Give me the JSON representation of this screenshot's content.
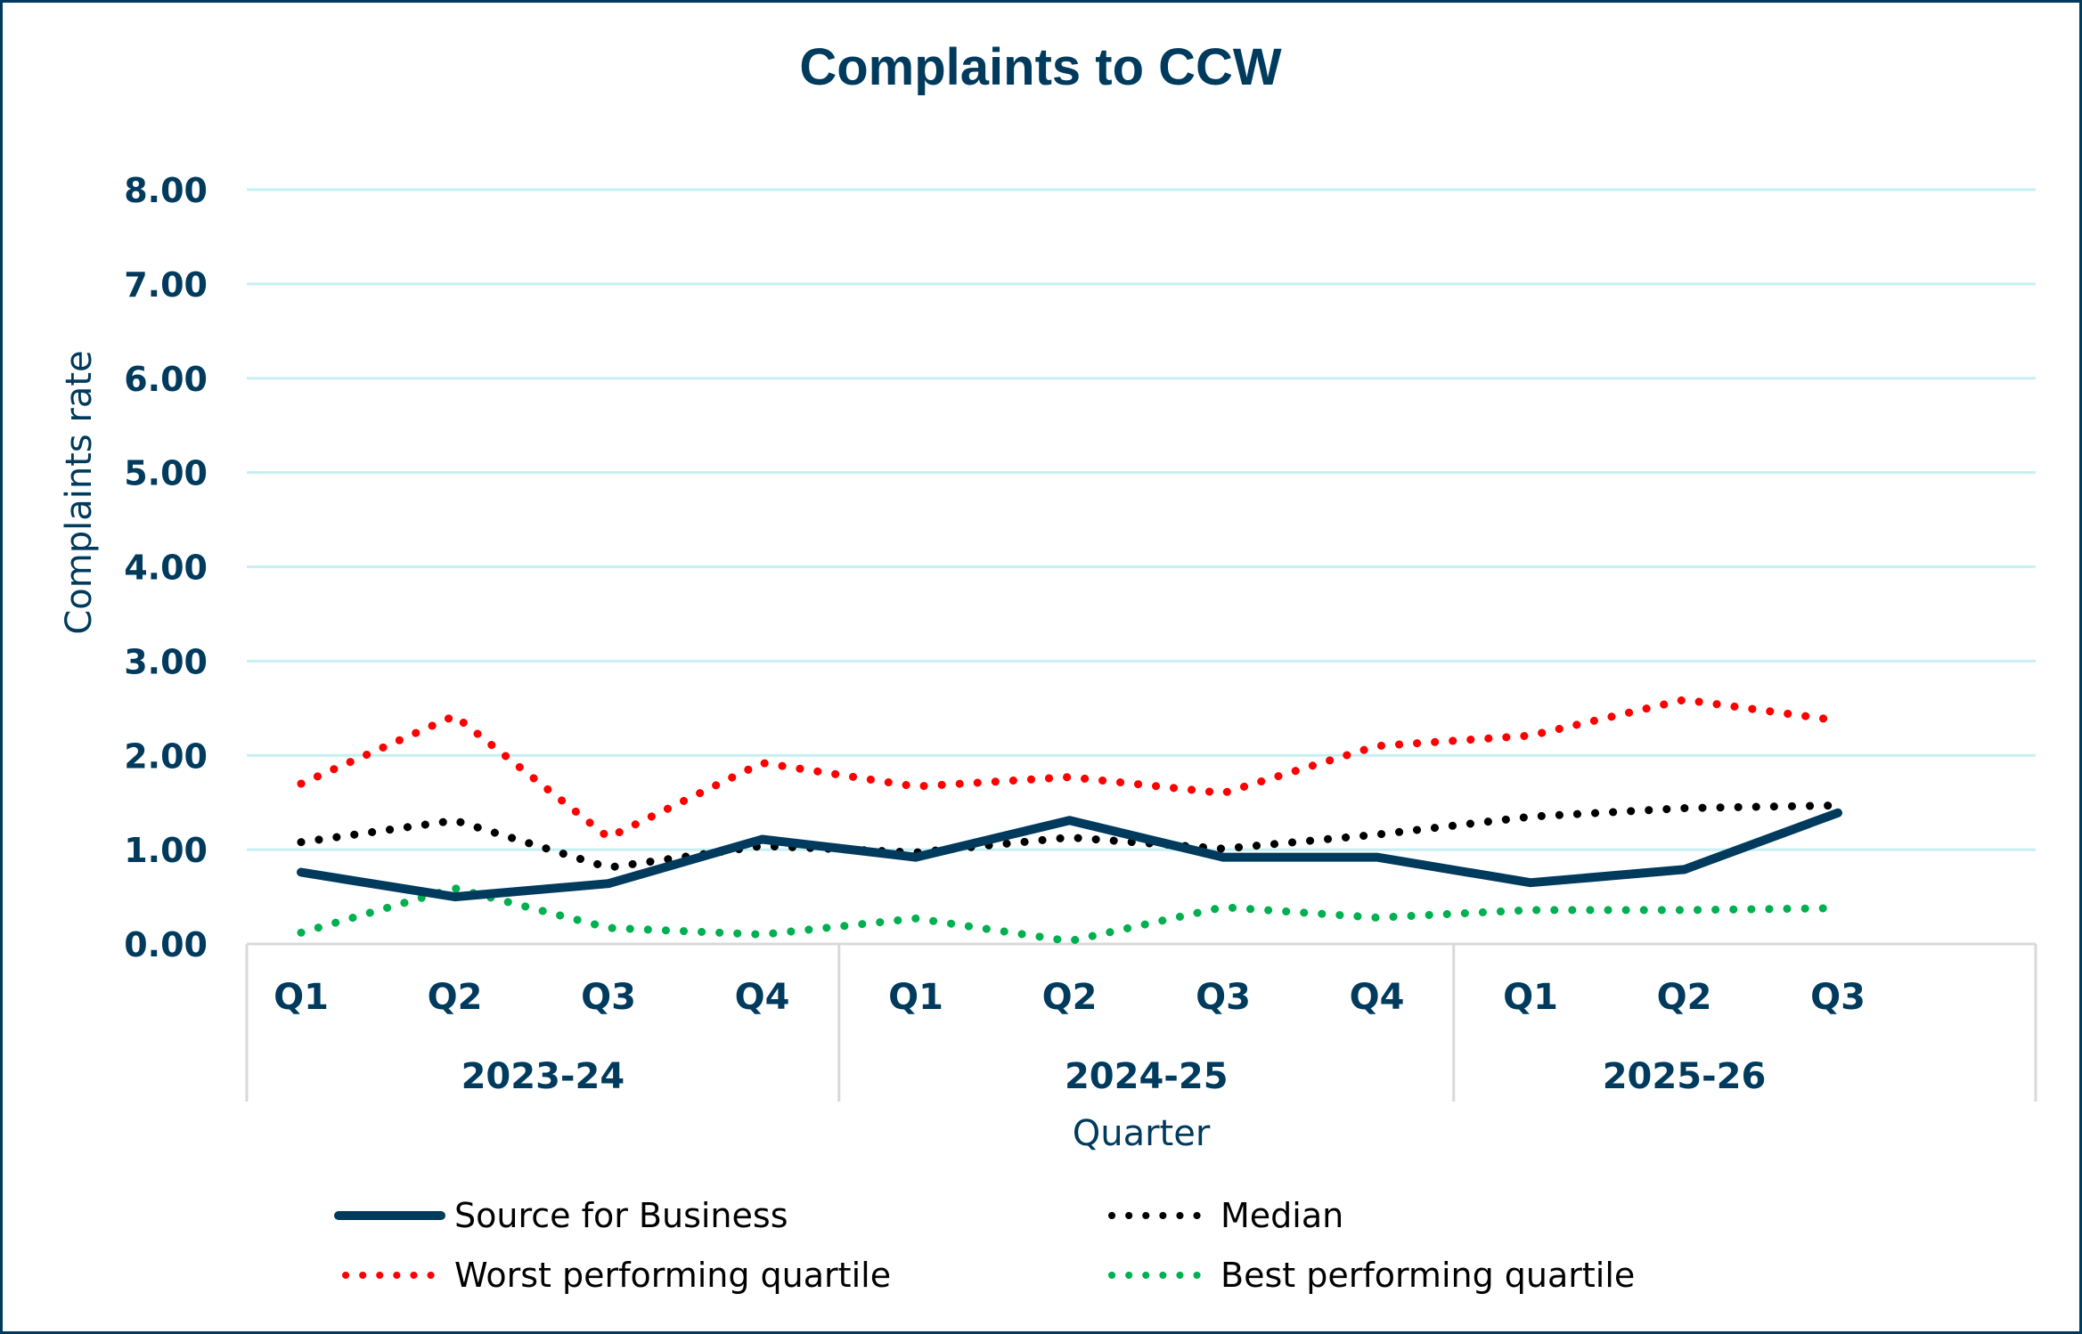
{
  "chart_data": {
    "type": "line",
    "title": "Complaints to CCW",
    "xlabel": "Quarter",
    "ylabel": "Complaints rate",
    "ylim": [
      0,
      8
    ],
    "y_ticks": [
      "0.00",
      "1.00",
      "2.00",
      "3.00",
      "4.00",
      "5.00",
      "6.00",
      "7.00",
      "8.00"
    ],
    "grid": true,
    "legend_position": "bottom",
    "categories": [
      "Q1",
      "Q2",
      "Q3",
      "Q4",
      "Q1",
      "Q2",
      "Q3",
      "Q4",
      "Q1",
      "Q2",
      "Q3"
    ],
    "category_groups": [
      {
        "label": "2023-24",
        "count": 4
      },
      {
        "label": "2024-25",
        "count": 4
      },
      {
        "label": "2025-26",
        "count": 3
      }
    ],
    "series": [
      {
        "name": "Source for Business",
        "color": "#003a5d",
        "style": "solid",
        "values": [
          0.76,
          0.5,
          0.64,
          1.11,
          0.92,
          1.31,
          0.92,
          0.92,
          0.65,
          0.79,
          1.39
        ]
      },
      {
        "name": "Median",
        "color": "#000000",
        "style": "dotted",
        "values": [
          1.08,
          1.31,
          0.81,
          1.04,
          0.97,
          1.13,
          1.01,
          1.16,
          1.35,
          1.44,
          1.47
        ]
      },
      {
        "name": "Worst performing quartile",
        "color": "#ff0000",
        "style": "dotted",
        "values": [
          1.7,
          2.42,
          1.13,
          1.92,
          1.67,
          1.77,
          1.6,
          2.1,
          2.21,
          2.59,
          2.37
        ]
      },
      {
        "name": "Best performing quartile",
        "color": "#00b050",
        "style": "dotted",
        "values": [
          0.12,
          0.59,
          0.17,
          0.1,
          0.27,
          0.03,
          0.39,
          0.28,
          0.36,
          0.36,
          0.38
        ]
      }
    ]
  },
  "colors": {
    "frame": "#003a5d",
    "gridline": "#c6f0f4",
    "axis_box": "#d9d9d9",
    "text": "#003a5d"
  }
}
